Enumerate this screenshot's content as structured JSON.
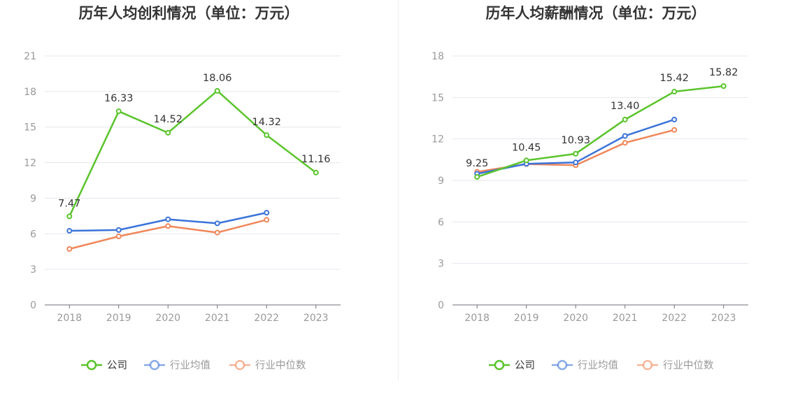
{
  "chart_data": [
    {
      "type": "line",
      "title": "历年人均创利情况（单位：万元）",
      "categories": [
        "2018",
        "2019",
        "2020",
        "2021",
        "2022",
        "2023"
      ],
      "ylim": [
        0,
        21
      ],
      "yticks": [
        0,
        3,
        6,
        9,
        12,
        15,
        18,
        21
      ],
      "grid": true,
      "legend_position": "bottom",
      "series": [
        {
          "name": "公司",
          "color": "#5ac42b",
          "values": [
            7.47,
            16.33,
            14.52,
            18.06,
            14.32,
            11.16
          ],
          "labels": [
            "7.47",
            "16.33",
            "14.52",
            "18.06",
            "14.32",
            "11.16"
          ]
        },
        {
          "name": "行业均值",
          "color": "#3b73d9",
          "values": [
            6.25,
            6.32,
            7.22,
            6.88,
            7.78,
            null
          ]
        },
        {
          "name": "行业中位数",
          "color": "#f0875a",
          "values": [
            4.72,
            5.78,
            6.65,
            6.1,
            7.18,
            null
          ]
        }
      ]
    },
    {
      "type": "line",
      "title": "历年人均薪酬情况（单位：万元）",
      "categories": [
        "2018",
        "2019",
        "2020",
        "2021",
        "2022",
        "2023"
      ],
      "ylim": [
        0,
        18
      ],
      "yticks": [
        0,
        3,
        6,
        9,
        12,
        15,
        18
      ],
      "grid": true,
      "legend_position": "bottom",
      "series": [
        {
          "name": "公司",
          "color": "#5ac42b",
          "values": [
            9.25,
            10.45,
            10.93,
            13.4,
            15.42,
            15.82
          ],
          "labels": [
            "9.25",
            "10.45",
            "10.93",
            "13.40",
            "15.42",
            "15.82"
          ]
        },
        {
          "name": "行业均值",
          "color": "#3b73d9",
          "values": [
            9.48,
            10.2,
            10.3,
            12.22,
            13.4,
            null
          ]
        },
        {
          "name": "行业中位数",
          "color": "#f0875a",
          "values": [
            9.62,
            10.18,
            10.1,
            11.72,
            12.65,
            null
          ]
        }
      ]
    }
  ]
}
